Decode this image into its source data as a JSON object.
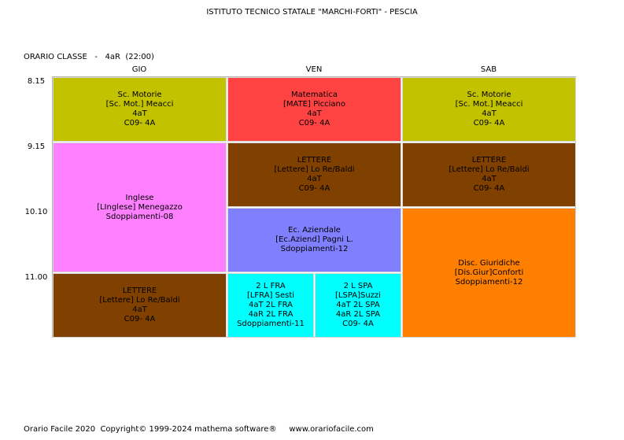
{
  "header": {
    "school": "ISTITUTO TECNICO STATALE \"MARCHI-FORTI\" - PESCIA"
  },
  "class_info": {
    "label": "ORARIO CLASSE   -   4aR  (22:00)"
  },
  "days": [
    "GIO",
    "VEN",
    "SAB"
  ],
  "times": [
    "8.15",
    "9.15",
    "10.10",
    "11.00"
  ],
  "colors": {
    "olive": "#c2c200",
    "red": "#ff4242",
    "pink": "#ff80ff",
    "brown": "#804000",
    "lavender": "#8080ff",
    "orange": "#ff8000",
    "cyan": "#00ffff"
  },
  "cells": {
    "gio_1": [
      "Sc. Motorie",
      "[Sc. Mot.] Meacci",
      "4aT",
      "C09- 4A"
    ],
    "gio_2": [
      "Inglese",
      "[LInglese] Menegazzo",
      "Sdoppiamenti-08"
    ],
    "gio_4": [
      "LETTERE",
      "[Lettere] Lo Re/Baldi",
      "4aT",
      "C09- 4A"
    ],
    "ven_1": [
      "Matematica",
      "[MATE] Picciano",
      "4aT",
      "C09- 4A"
    ],
    "ven_2": [
      "LETTERE",
      "[Lettere] Lo Re/Baldi",
      "4aT",
      "C09- 4A"
    ],
    "ven_3": [
      "Ec. Aziendale",
      "[Ec.Aziend] Pagni L.",
      "Sdoppiamenti-12"
    ],
    "ven_4a": [
      "2 L FRA",
      "[LFRA] Sesti",
      "4aT 2L FRA",
      "4aR 2L FRA",
      "Sdoppiamenti-11"
    ],
    "ven_4b": [
      "2 L SPA",
      "[LSPA]Suzzi",
      "4aT 2L SPA",
      "4aR 2L SPA",
      "C09- 4A"
    ],
    "sab_1": [
      "Sc. Motorie",
      "[Sc. Mot.] Meacci",
      "4aT",
      "C09- 4A"
    ],
    "sab_2": [
      "LETTERE",
      "[Lettere] Lo Re/Baldi",
      "4aT",
      "C09- 4A"
    ],
    "sab_3": [
      "Disc. Giuridiche",
      "[Dis.Giur]Conforti",
      "Sdoppiamenti-12"
    ]
  },
  "footer": {
    "product": "Orario Facile 2020",
    "copyright": "Copyright© 1999-2024 mathema software®",
    "website": "www.orariofacile.com"
  }
}
